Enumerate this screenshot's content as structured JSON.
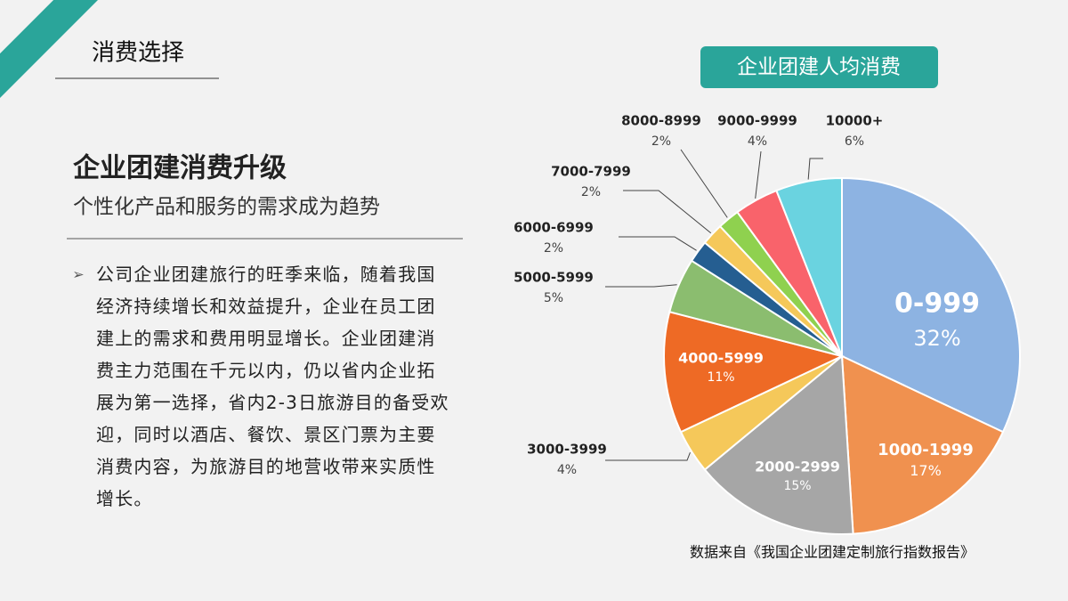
{
  "header": {
    "title": "消费选择"
  },
  "body": {
    "heading": "企业团建消费升级",
    "subheading": "个性化产品和服务的需求成为趋势",
    "paragraph": "公司企业团建旅行的旺季来临，随着我国经济持续增长和效益提升，企业在员工团建上的需求和费用明显增长。企业团建消费主力范围在千元以内，仍以省内企业拓展为第一选择，省内2-3日旅游目的备受欢迎，同时以酒店、餐饮、景区门票为主要消费内容，为旅游目的地营收带来实质性增长。"
  },
  "chart_data": {
    "type": "pie",
    "title": "企业团建人均消费",
    "source": "数据来自《我国企业团建定制旅行指数报告》",
    "categories": [
      "0-999",
      "1000-1999",
      "2000-2999",
      "3000-3999",
      "4000-5999",
      "5000-5999",
      "6000-6999",
      "7000-7999",
      "8000-8999",
      "9000-9999",
      "10000+"
    ],
    "values": [
      32,
      17,
      15,
      4,
      11,
      5,
      2,
      2,
      2,
      4,
      6
    ],
    "value_labels": [
      "32%",
      "17%",
      "15%",
      "4%",
      "11%",
      "5%",
      "2%",
      "2%",
      "2%",
      "4%",
      "6%"
    ],
    "colors": [
      "#8db3e2",
      "#f0914f",
      "#a6a6a6",
      "#f5c85a",
      "#ee6a25",
      "#8bbd6f",
      "#255e91",
      "#f5c85a",
      "#8fd14f",
      "#f9636b",
      "#6ad3e0"
    ]
  }
}
